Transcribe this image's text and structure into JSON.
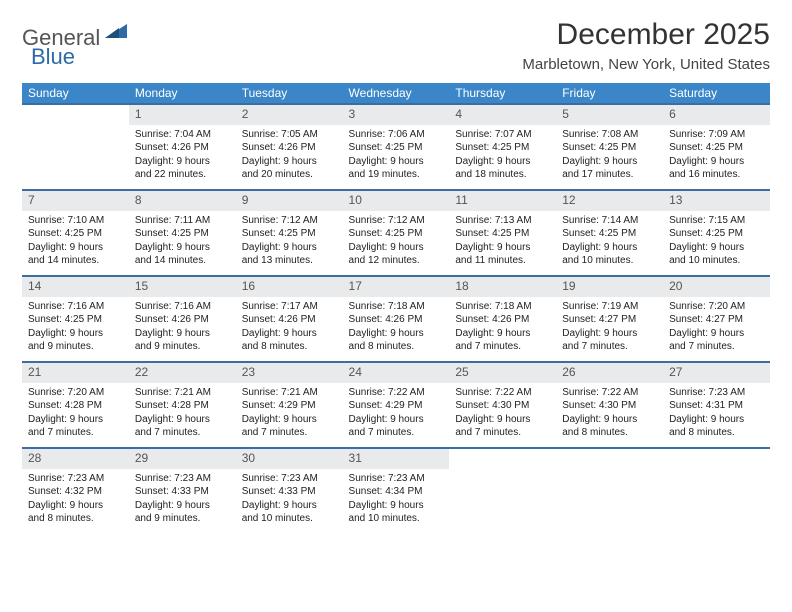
{
  "title": "December 2025",
  "location": "Marbletown, New York, United States",
  "logo": {
    "part1": "General",
    "part2": "Blue"
  },
  "colors": {
    "header_bg": "#3a86c8",
    "daynum_bg": "#e9eaeb",
    "rule": "#3a6ea0",
    "logo_blue": "#2f6aa8"
  },
  "weekdays": [
    "Sunday",
    "Monday",
    "Tuesday",
    "Wednesday",
    "Thursday",
    "Friday",
    "Saturday"
  ],
  "weeks": [
    [
      {
        "n": "",
        "lines": []
      },
      {
        "n": "1",
        "lines": [
          "Sunrise: 7:04 AM",
          "Sunset: 4:26 PM",
          "Daylight: 9 hours",
          "and 22 minutes."
        ]
      },
      {
        "n": "2",
        "lines": [
          "Sunrise: 7:05 AM",
          "Sunset: 4:26 PM",
          "Daylight: 9 hours",
          "and 20 minutes."
        ]
      },
      {
        "n": "3",
        "lines": [
          "Sunrise: 7:06 AM",
          "Sunset: 4:25 PM",
          "Daylight: 9 hours",
          "and 19 minutes."
        ]
      },
      {
        "n": "4",
        "lines": [
          "Sunrise: 7:07 AM",
          "Sunset: 4:25 PM",
          "Daylight: 9 hours",
          "and 18 minutes."
        ]
      },
      {
        "n": "5",
        "lines": [
          "Sunrise: 7:08 AM",
          "Sunset: 4:25 PM",
          "Daylight: 9 hours",
          "and 17 minutes."
        ]
      },
      {
        "n": "6",
        "lines": [
          "Sunrise: 7:09 AM",
          "Sunset: 4:25 PM",
          "Daylight: 9 hours",
          "and 16 minutes."
        ]
      }
    ],
    [
      {
        "n": "7",
        "lines": [
          "Sunrise: 7:10 AM",
          "Sunset: 4:25 PM",
          "Daylight: 9 hours",
          "and 14 minutes."
        ]
      },
      {
        "n": "8",
        "lines": [
          "Sunrise: 7:11 AM",
          "Sunset: 4:25 PM",
          "Daylight: 9 hours",
          "and 14 minutes."
        ]
      },
      {
        "n": "9",
        "lines": [
          "Sunrise: 7:12 AM",
          "Sunset: 4:25 PM",
          "Daylight: 9 hours",
          "and 13 minutes."
        ]
      },
      {
        "n": "10",
        "lines": [
          "Sunrise: 7:12 AM",
          "Sunset: 4:25 PM",
          "Daylight: 9 hours",
          "and 12 minutes."
        ]
      },
      {
        "n": "11",
        "lines": [
          "Sunrise: 7:13 AM",
          "Sunset: 4:25 PM",
          "Daylight: 9 hours",
          "and 11 minutes."
        ]
      },
      {
        "n": "12",
        "lines": [
          "Sunrise: 7:14 AM",
          "Sunset: 4:25 PM",
          "Daylight: 9 hours",
          "and 10 minutes."
        ]
      },
      {
        "n": "13",
        "lines": [
          "Sunrise: 7:15 AM",
          "Sunset: 4:25 PM",
          "Daylight: 9 hours",
          "and 10 minutes."
        ]
      }
    ],
    [
      {
        "n": "14",
        "lines": [
          "Sunrise: 7:16 AM",
          "Sunset: 4:25 PM",
          "Daylight: 9 hours",
          "and 9 minutes."
        ]
      },
      {
        "n": "15",
        "lines": [
          "Sunrise: 7:16 AM",
          "Sunset: 4:26 PM",
          "Daylight: 9 hours",
          "and 9 minutes."
        ]
      },
      {
        "n": "16",
        "lines": [
          "Sunrise: 7:17 AM",
          "Sunset: 4:26 PM",
          "Daylight: 9 hours",
          "and 8 minutes."
        ]
      },
      {
        "n": "17",
        "lines": [
          "Sunrise: 7:18 AM",
          "Sunset: 4:26 PM",
          "Daylight: 9 hours",
          "and 8 minutes."
        ]
      },
      {
        "n": "18",
        "lines": [
          "Sunrise: 7:18 AM",
          "Sunset: 4:26 PM",
          "Daylight: 9 hours",
          "and 7 minutes."
        ]
      },
      {
        "n": "19",
        "lines": [
          "Sunrise: 7:19 AM",
          "Sunset: 4:27 PM",
          "Daylight: 9 hours",
          "and 7 minutes."
        ]
      },
      {
        "n": "20",
        "lines": [
          "Sunrise: 7:20 AM",
          "Sunset: 4:27 PM",
          "Daylight: 9 hours",
          "and 7 minutes."
        ]
      }
    ],
    [
      {
        "n": "21",
        "lines": [
          "Sunrise: 7:20 AM",
          "Sunset: 4:28 PM",
          "Daylight: 9 hours",
          "and 7 minutes."
        ]
      },
      {
        "n": "22",
        "lines": [
          "Sunrise: 7:21 AM",
          "Sunset: 4:28 PM",
          "Daylight: 9 hours",
          "and 7 minutes."
        ]
      },
      {
        "n": "23",
        "lines": [
          "Sunrise: 7:21 AM",
          "Sunset: 4:29 PM",
          "Daylight: 9 hours",
          "and 7 minutes."
        ]
      },
      {
        "n": "24",
        "lines": [
          "Sunrise: 7:22 AM",
          "Sunset: 4:29 PM",
          "Daylight: 9 hours",
          "and 7 minutes."
        ]
      },
      {
        "n": "25",
        "lines": [
          "Sunrise: 7:22 AM",
          "Sunset: 4:30 PM",
          "Daylight: 9 hours",
          "and 7 minutes."
        ]
      },
      {
        "n": "26",
        "lines": [
          "Sunrise: 7:22 AM",
          "Sunset: 4:30 PM",
          "Daylight: 9 hours",
          "and 8 minutes."
        ]
      },
      {
        "n": "27",
        "lines": [
          "Sunrise: 7:23 AM",
          "Sunset: 4:31 PM",
          "Daylight: 9 hours",
          "and 8 minutes."
        ]
      }
    ],
    [
      {
        "n": "28",
        "lines": [
          "Sunrise: 7:23 AM",
          "Sunset: 4:32 PM",
          "Daylight: 9 hours",
          "and 8 minutes."
        ]
      },
      {
        "n": "29",
        "lines": [
          "Sunrise: 7:23 AM",
          "Sunset: 4:33 PM",
          "Daylight: 9 hours",
          "and 9 minutes."
        ]
      },
      {
        "n": "30",
        "lines": [
          "Sunrise: 7:23 AM",
          "Sunset: 4:33 PM",
          "Daylight: 9 hours",
          "and 10 minutes."
        ]
      },
      {
        "n": "31",
        "lines": [
          "Sunrise: 7:23 AM",
          "Sunset: 4:34 PM",
          "Daylight: 9 hours",
          "and 10 minutes."
        ]
      },
      {
        "n": "",
        "lines": []
      },
      {
        "n": "",
        "lines": []
      },
      {
        "n": "",
        "lines": []
      }
    ]
  ]
}
